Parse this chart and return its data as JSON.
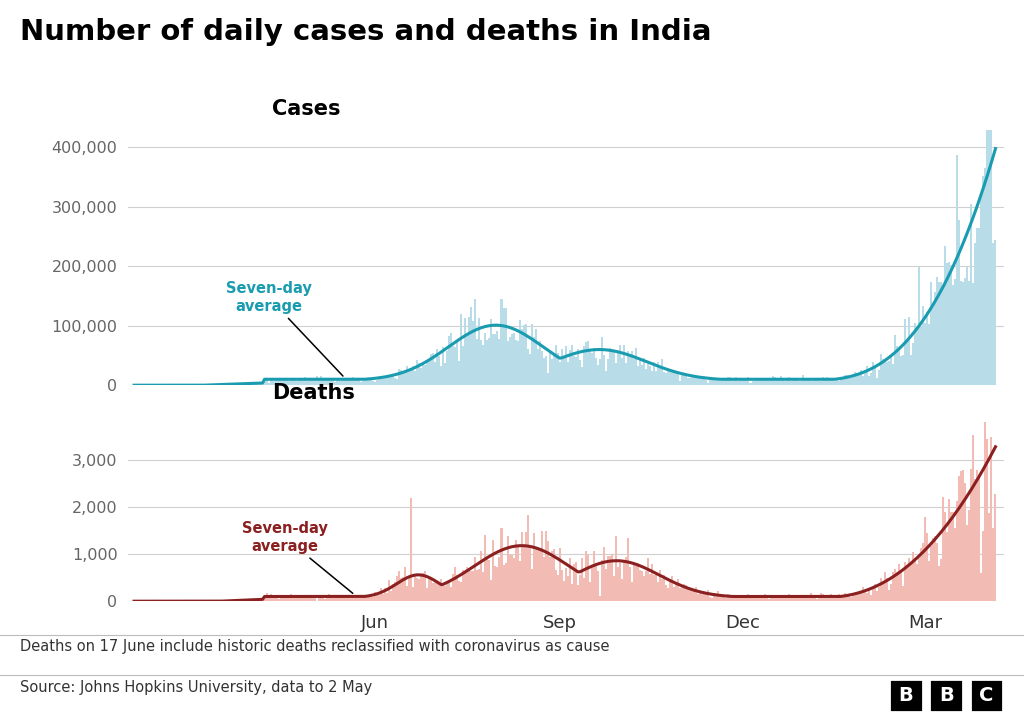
{
  "title": "Number of daily cases and deaths in India",
  "cases_label": "Cases",
  "deaths_label": "Deaths",
  "annotation_cases": "Seven-day\naverage",
  "annotation_deaths": "Seven-day\naverage",
  "footnote": "Deaths on 17 June include historic deaths reclassified with coronavirus as cause",
  "source": "Source: Johns Hopkins University, data to 2 May",
  "bbc_text": "BBC",
  "cases_bar_color": "#b8dce8",
  "cases_line_color": "#1a9cb0",
  "deaths_bar_color": "#f2bcb5",
  "deaths_line_color": "#8b2020",
  "background_color": "#ffffff",
  "grid_color": "#d0d0d0",
  "tick_color": "#666666",
  "cases_ylim": [
    0,
    430000
  ],
  "deaths_ylim": [
    0,
    3900
  ],
  "cases_yticks": [
    0,
    100000,
    200000,
    300000,
    400000
  ],
  "deaths_yticks": [
    0,
    1000,
    2000,
    3000
  ],
  "n_days": 430,
  "jun_idx": 120,
  "sep_idx": 212,
  "dec_idx": 303,
  "mar_idx": 394,
  "june17_death_spike": 2200
}
